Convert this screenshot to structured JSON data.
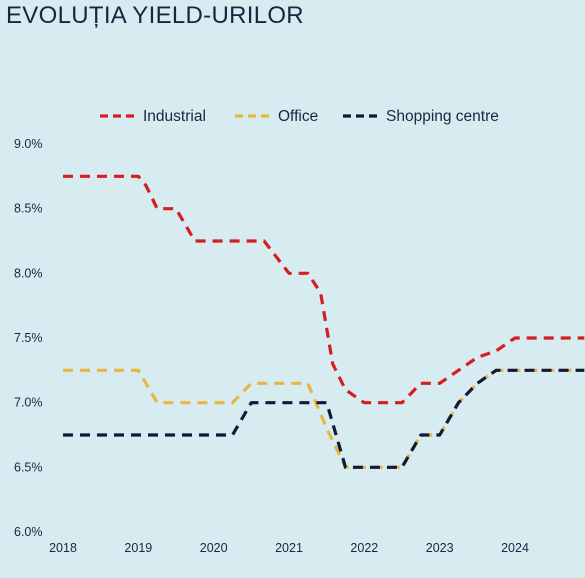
{
  "title": "EVOLUȚIA YIELD-URILOR",
  "colors": {
    "background": "#d6ecf1",
    "text": "#1d2440",
    "Industrial": "#d61e1e",
    "Office": "#e8b73e",
    "Shopping centre": "#131a38"
  },
  "chart_data": {
    "type": "line",
    "title": "EVOLUȚIA YIELD-URILOR",
    "xlabel": "",
    "ylabel": "",
    "x_ticks": [
      "2018",
      "2019",
      "2020",
      "2021",
      "2022",
      "2023",
      "2024"
    ],
    "y_ticks": [
      "9.0%",
      "8.5%",
      "8.0%",
      "7.5%",
      "7.0%",
      "6.5%",
      "6.0%"
    ],
    "xlim": [
      2018.0,
      2024.92
    ],
    "ylim": [
      6.0,
      9.0
    ],
    "grid": false,
    "legend_position": "top",
    "line_style": "dashed",
    "series": [
      {
        "name": "Industrial",
        "points": [
          [
            2018.0,
            8.75
          ],
          [
            2019.0,
            8.75
          ],
          [
            2019.1,
            8.68
          ],
          [
            2019.25,
            8.5
          ],
          [
            2019.5,
            8.5
          ],
          [
            2019.75,
            8.25
          ],
          [
            2020.25,
            8.25
          ],
          [
            2020.67,
            8.25
          ],
          [
            2021.0,
            8.0
          ],
          [
            2021.25,
            8.0
          ],
          [
            2021.42,
            7.85
          ],
          [
            2021.58,
            7.3
          ],
          [
            2021.75,
            7.1
          ],
          [
            2022.0,
            7.0
          ],
          [
            2022.5,
            7.0
          ],
          [
            2022.75,
            7.15
          ],
          [
            2023.0,
            7.15
          ],
          [
            2023.25,
            7.25
          ],
          [
            2023.5,
            7.35
          ],
          [
            2023.75,
            7.4
          ],
          [
            2024.0,
            7.5
          ],
          [
            2024.92,
            7.5
          ]
        ]
      },
      {
        "name": "Office",
        "points": [
          [
            2018.0,
            7.25
          ],
          [
            2019.0,
            7.25
          ],
          [
            2019.25,
            7.0
          ],
          [
            2020.25,
            7.0
          ],
          [
            2020.5,
            7.15
          ],
          [
            2021.25,
            7.15
          ],
          [
            2021.5,
            6.8
          ],
          [
            2021.75,
            6.5
          ],
          [
            2022.5,
            6.5
          ],
          [
            2022.75,
            6.75
          ],
          [
            2023.0,
            6.75
          ],
          [
            2023.25,
            7.0
          ],
          [
            2023.5,
            7.15
          ],
          [
            2023.75,
            7.25
          ],
          [
            2024.92,
            7.25
          ]
        ]
      },
      {
        "name": "Shopping centre",
        "points": [
          [
            2018.0,
            6.75
          ],
          [
            2020.25,
            6.75
          ],
          [
            2020.5,
            7.0
          ],
          [
            2021.5,
            7.0
          ],
          [
            2021.75,
            6.5
          ],
          [
            2022.5,
            6.5
          ],
          [
            2022.75,
            6.75
          ],
          [
            2023.0,
            6.75
          ],
          [
            2023.25,
            7.0
          ],
          [
            2023.5,
            7.15
          ],
          [
            2023.75,
            7.25
          ],
          [
            2024.92,
            7.25
          ]
        ]
      }
    ]
  }
}
